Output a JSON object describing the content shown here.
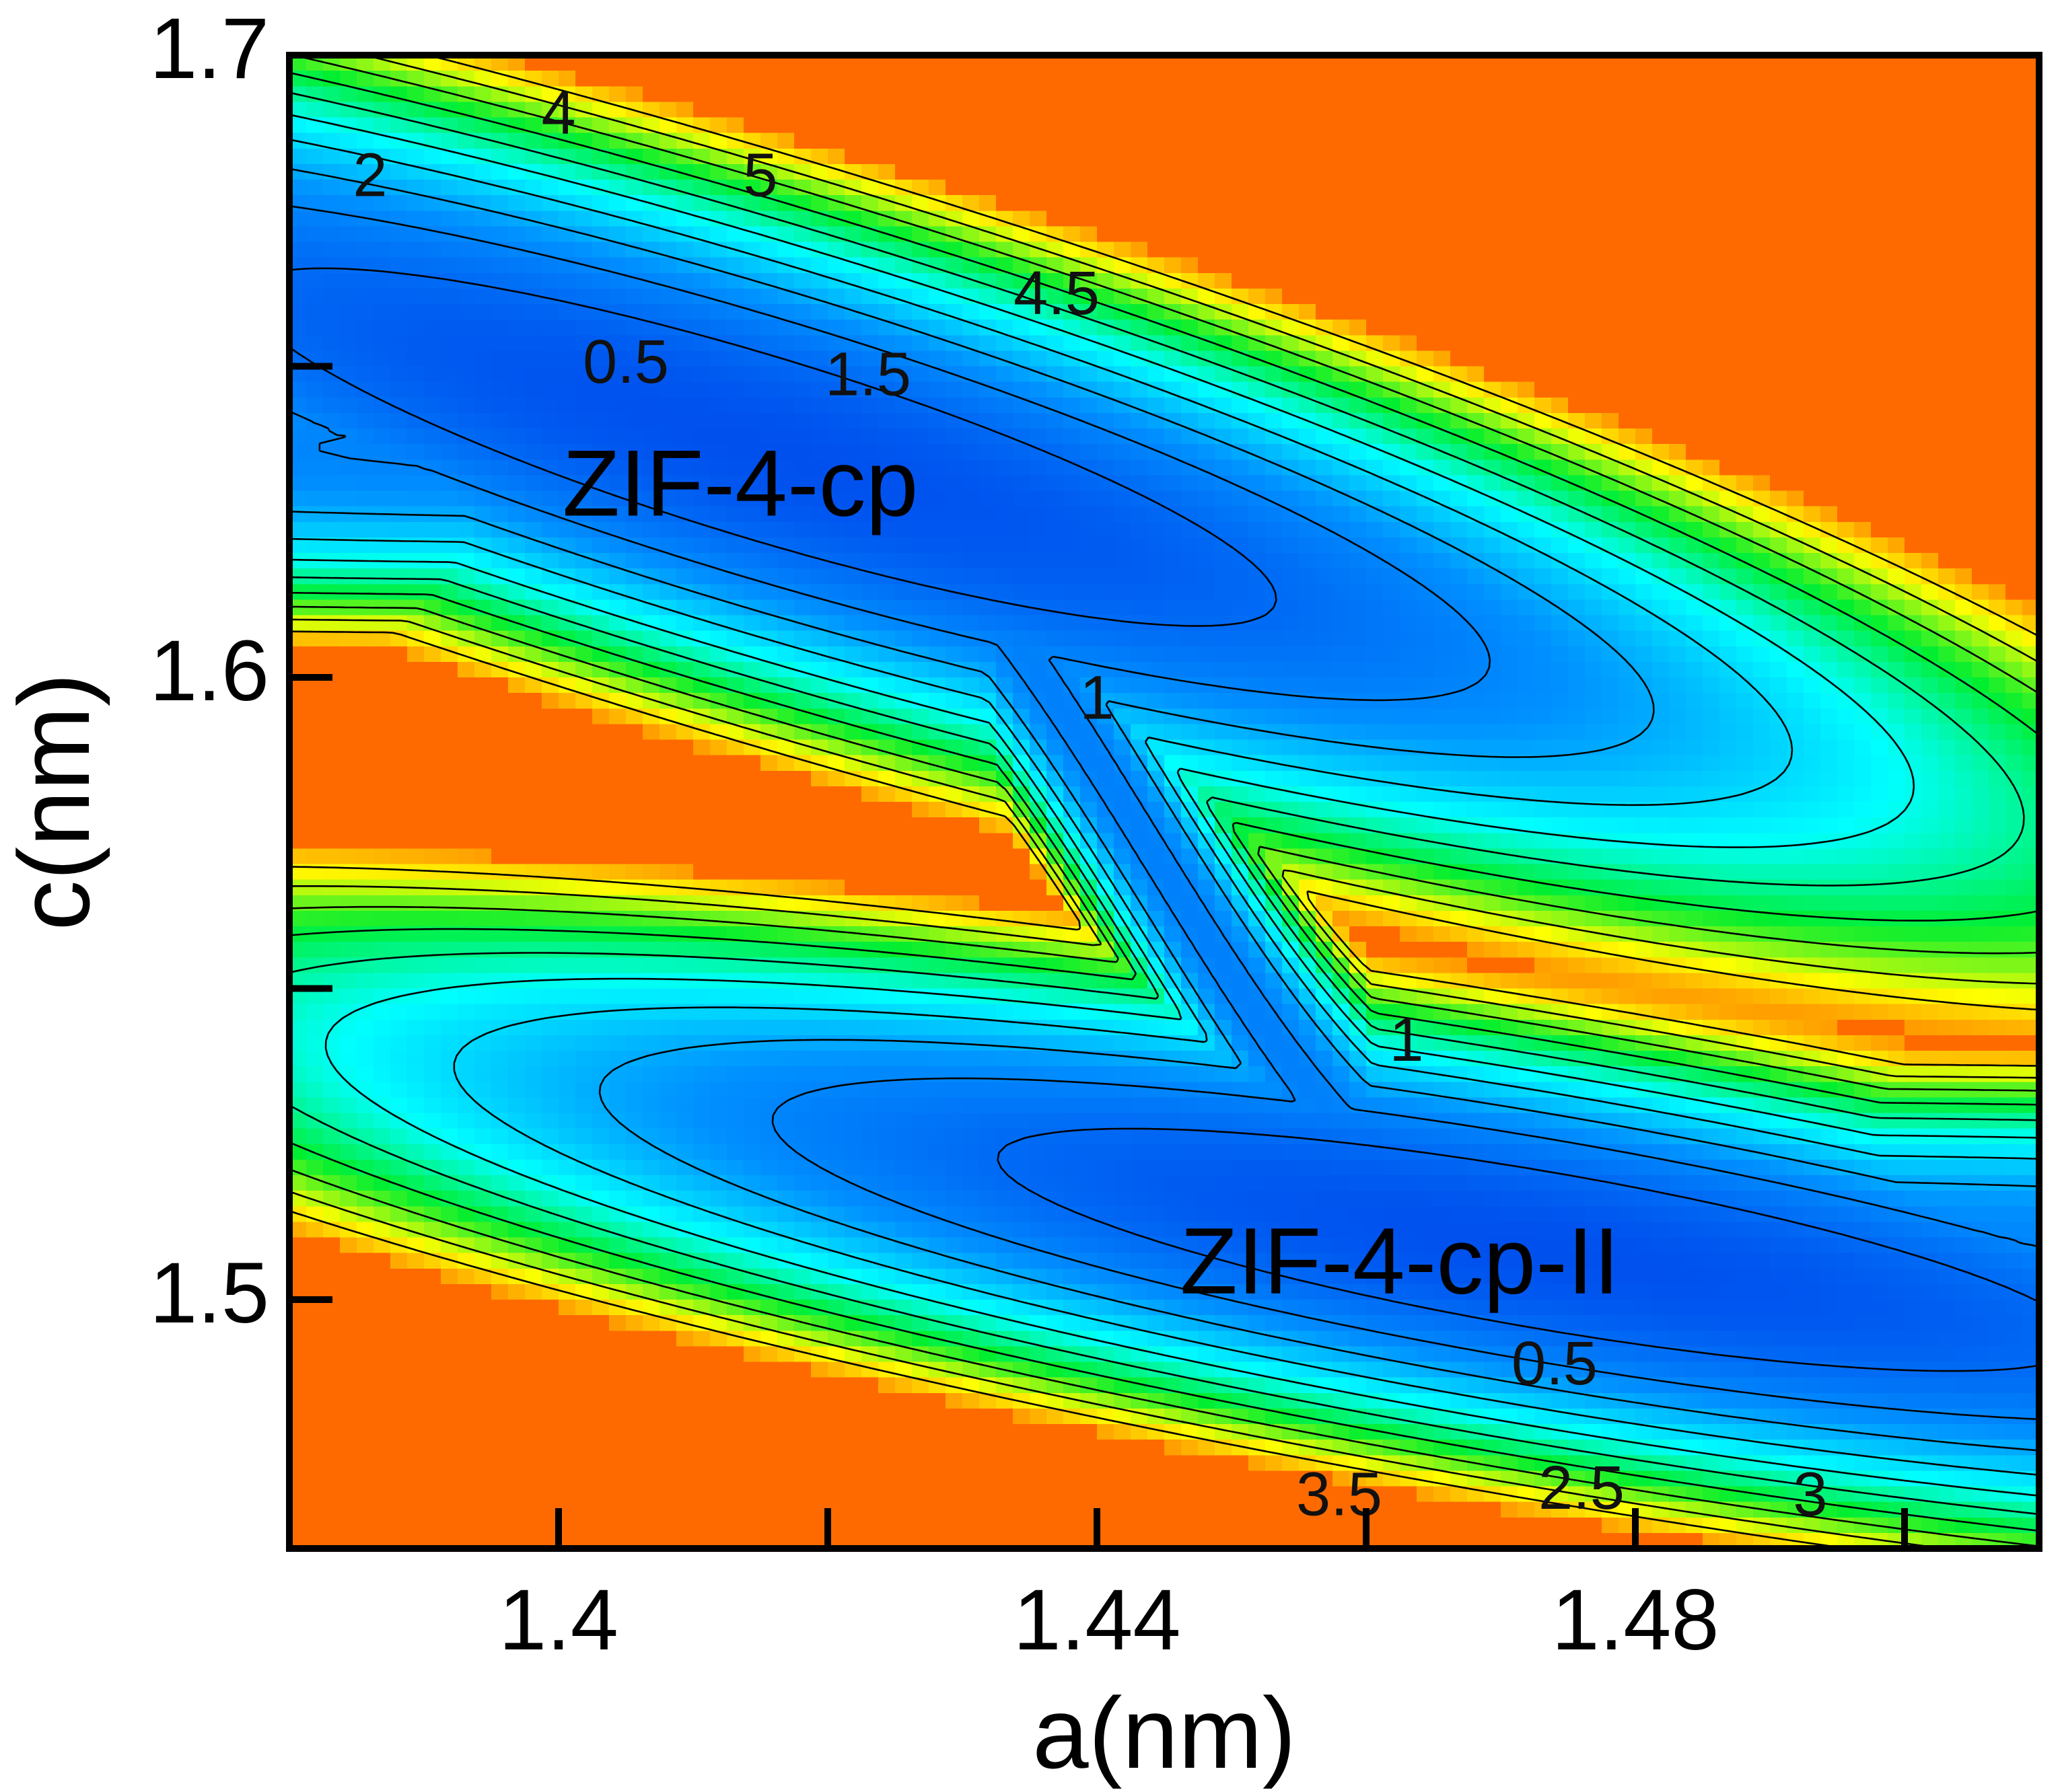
{
  "chart_data": {
    "type": "heatmap",
    "subtype": "contour",
    "xlabel": "a(nm)",
    "ylabel": "c(nm)",
    "xlim": [
      1.38,
      1.51
    ],
    "ylim": [
      1.46,
      1.7
    ],
    "x_ticks": [
      {
        "value": 1.4,
        "label": "1.4"
      },
      {
        "value": 1.42,
        "label": ""
      },
      {
        "value": 1.44,
        "label": "1.44"
      },
      {
        "value": 1.46,
        "label": ""
      },
      {
        "value": 1.48,
        "label": "1.48"
      },
      {
        "value": 1.5,
        "label": ""
      }
    ],
    "y_ticks": [
      {
        "value": 1.5,
        "label": "1.5"
      },
      {
        "value": 1.55,
        "label": ""
      },
      {
        "value": 1.6,
        "label": "1.6"
      },
      {
        "value": 1.65,
        "label": ""
      },
      {
        "value": 1.7,
        "label": "1.7"
      }
    ],
    "grid": false,
    "colorscale": {
      "min": 0,
      "max": 6,
      "stops": [
        "#0050ee",
        "#0090ff",
        "#00ffff",
        "#00ee30",
        "#ffff00",
        "#ff6a00"
      ]
    },
    "contour_levels": [
      0.5,
      1,
      1.5,
      2,
      2.5,
      3,
      3.5,
      4,
      4.5,
      5
    ],
    "minima": [
      {
        "name": "ZIF-4-cp",
        "a": 1.415,
        "c": 1.637,
        "value": 0.0
      },
      {
        "name": "ZIF-4-cp-II",
        "a": 1.473,
        "c": 1.508,
        "value": 0.0
      }
    ],
    "contour_labels": [
      {
        "text": "0.5",
        "a": 1.405,
        "c": 1.65
      },
      {
        "text": "1.5",
        "a": 1.423,
        "c": 1.648
      },
      {
        "text": "2",
        "a": 1.386,
        "c": 1.68
      },
      {
        "text": "4",
        "a": 1.4,
        "c": 1.69
      },
      {
        "text": "5",
        "a": 1.415,
        "c": 1.68
      },
      {
        "text": "4.5",
        "a": 1.437,
        "c": 1.661
      },
      {
        "text": "1",
        "a": 1.44,
        "c": 1.596
      },
      {
        "text": "1",
        "a": 1.463,
        "c": 1.541
      },
      {
        "text": "0.5",
        "a": 1.474,
        "c": 1.489
      },
      {
        "text": "3.5",
        "a": 1.458,
        "c": 1.468
      },
      {
        "text": "2.5",
        "a": 1.476,
        "c": 1.469
      },
      {
        "text": "3",
        "a": 1.493,
        "c": 1.468
      }
    ],
    "annotations": [
      {
        "text": "ZIF-4-cp",
        "a": 1.4135,
        "c": 1.63
      },
      {
        "text": "ZIF-4-cp-II",
        "a": 1.4625,
        "c": 1.505
      }
    ]
  }
}
